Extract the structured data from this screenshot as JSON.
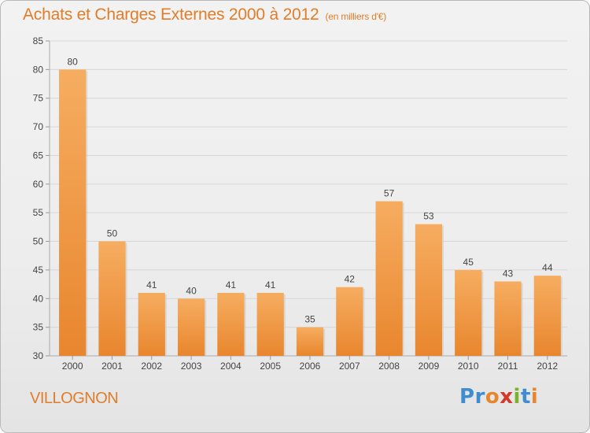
{
  "chart_data": {
    "type": "bar",
    "title": "Achats et Charges Externes 2000 à 2012",
    "subtitle": "(en milliers d'€)",
    "categories": [
      "2000",
      "2001",
      "2002",
      "2003",
      "2004",
      "2005",
      "2006",
      "2007",
      "2008",
      "2009",
      "2010",
      "2011",
      "2012"
    ],
    "values": [
      80,
      50,
      41,
      40,
      41,
      41,
      35,
      42,
      57,
      53,
      45,
      43,
      44
    ],
    "ylim": [
      30,
      85
    ],
    "yticks": [
      30,
      35,
      40,
      45,
      50,
      55,
      60,
      65,
      70,
      75,
      80,
      85
    ],
    "grid": true,
    "bar_color": "#e8862e",
    "bar_color_light": "#f6ad60",
    "label_color": "#e07d2a"
  },
  "footer": {
    "commune": "VILLOGNON",
    "logo_letters": [
      "P",
      "r",
      "o",
      "x",
      "i",
      "t",
      "i"
    ],
    "logo_colors": [
      "#3f8ccf",
      "#3f8ccf",
      "#e8862e",
      "#d23a2a",
      "#7bb12e",
      "#3f8ccf",
      "#e8862e"
    ]
  }
}
